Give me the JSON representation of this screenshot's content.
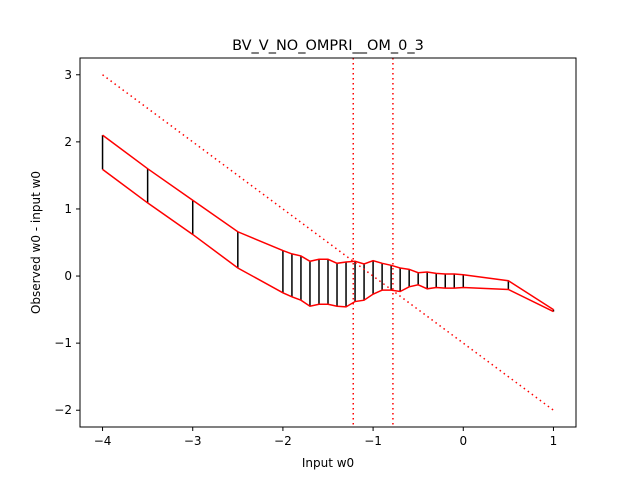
{
  "chart_data": {
    "type": "line",
    "title": "BV_V_NO_OMPRI__OM_0_3",
    "xlabel": "Input w0",
    "ylabel": "Observed w0 - input w0",
    "xlim": [
      -4.25,
      1.25
    ],
    "ylim": [
      -2.25,
      3.25
    ],
    "xticks": [
      -4,
      -3,
      -2,
      -1,
      0,
      1
    ],
    "xtick_labels": [
      "−4",
      "−3",
      "−2",
      "−1",
      "0",
      "1"
    ],
    "yticks": [
      -2,
      -1,
      0,
      1,
      2,
      3
    ],
    "ytick_labels": [
      "−2",
      "−1",
      "0",
      "1",
      "2",
      "3"
    ],
    "grid": false,
    "colors": {
      "band": "#ff0000",
      "whisker": "#000000",
      "axes": "#000000"
    },
    "x": [
      -4.0,
      -3.5,
      -3.0,
      -2.5,
      -2.0,
      -1.9,
      -1.8,
      -1.7,
      -1.6,
      -1.5,
      -1.4,
      -1.3,
      -1.2,
      -1.1,
      -1.0,
      -0.9,
      -0.8,
      -0.7,
      -0.6,
      -0.5,
      -0.4,
      -0.3,
      -0.2,
      -0.1,
      0.0,
      0.5,
      1.0
    ],
    "upper": [
      2.1,
      1.6,
      1.13,
      0.66,
      0.38,
      0.33,
      0.3,
      0.22,
      0.25,
      0.25,
      0.19,
      0.21,
      0.22,
      0.18,
      0.23,
      0.19,
      0.16,
      0.12,
      0.1,
      0.05,
      0.06,
      0.04,
      0.03,
      0.03,
      0.02,
      -0.07,
      -0.5
    ],
    "lower": [
      1.59,
      1.09,
      0.62,
      0.12,
      -0.25,
      -0.31,
      -0.36,
      -0.45,
      -0.42,
      -0.42,
      -0.45,
      -0.46,
      -0.38,
      -0.36,
      -0.27,
      -0.21,
      -0.21,
      -0.23,
      -0.16,
      -0.13,
      -0.19,
      -0.17,
      -0.18,
      -0.18,
      -0.17,
      -0.2,
      -0.53
    ],
    "reference_line": {
      "style": "dotted",
      "points": [
        [
          -4,
          3
        ],
        [
          1,
          -2
        ]
      ]
    },
    "vertical_lines": {
      "style": "dotted",
      "x": [
        -1.22,
        -0.78
      ]
    }
  }
}
